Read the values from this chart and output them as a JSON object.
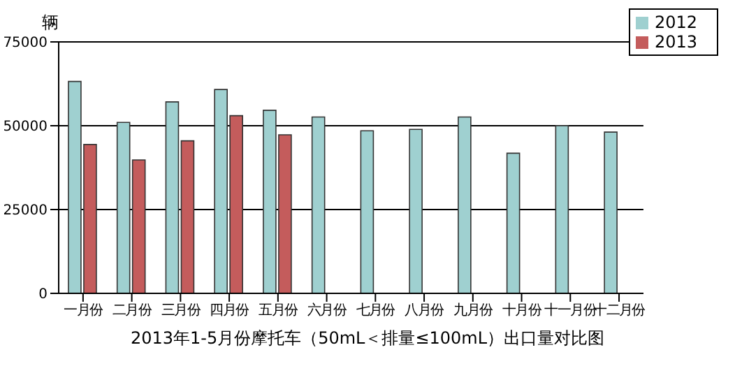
{
  "chart_data": {
    "type": "bar",
    "title": "2013年1-5月份摩托车（50mL＜排量≤100mL）出口量对比图",
    "ylabel": "辆",
    "categories": [
      "一月份",
      "二月份",
      "三月份",
      "四月份",
      "五月份",
      "六月份",
      "七月份",
      "八月份",
      "九月份",
      "十月份",
      "十一月份",
      "十二月份"
    ],
    "series": [
      {
        "name": "2012",
        "color": "#9fd0d0",
        "values": [
          63200,
          51000,
          57100,
          60800,
          54600,
          52600,
          48500,
          48900,
          52600,
          41800,
          50000,
          48100
        ]
      },
      {
        "name": "2013",
        "color": "#c45c5c",
        "values": [
          44400,
          39800,
          45500,
          53000,
          47300,
          null,
          null,
          null,
          null,
          null,
          null,
          null
        ]
      }
    ],
    "ylim": [
      0,
      75000
    ],
    "yticks": [
      0,
      25000,
      50000,
      75000
    ],
    "grid": "y",
    "legend": "top right"
  }
}
